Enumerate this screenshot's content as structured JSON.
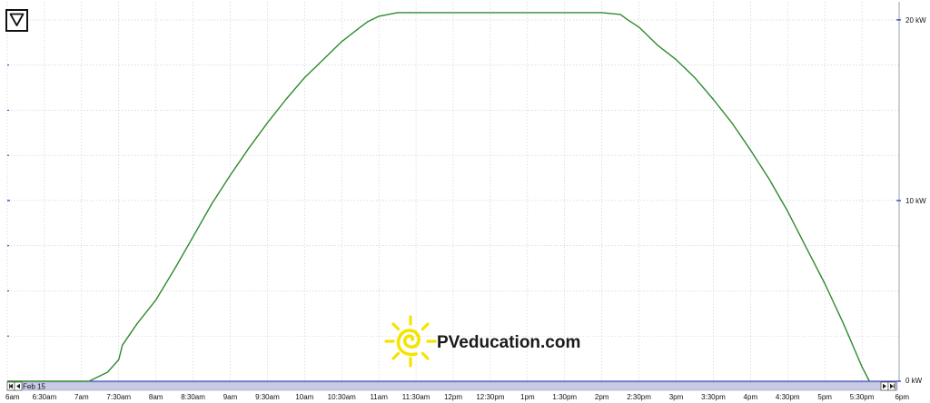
{
  "colors": {
    "line": "#2e8b2e",
    "grid": "#c8ccd4",
    "ytick": "#1c2fb5",
    "scrollbar": "#c9cbe6",
    "logo_sun": "#f5e400"
  },
  "icons": {
    "menu": "triangle-down-icon",
    "nav_first": "first-icon",
    "nav_prev": "prev-icon",
    "nav_next": "next-icon",
    "nav_last": "last-icon"
  },
  "date_label": "Feb 15",
  "brand": "PVeducation.com",
  "chart_data": {
    "type": "line",
    "title": "",
    "xlabel": "",
    "ylabel": "",
    "x_tick_labels": [
      "6am",
      "6:30am",
      "7am",
      "7:30am",
      "8am",
      "8:30am",
      "9am",
      "9:30am",
      "10am",
      "10:30am",
      "11am",
      "11:30am",
      "12pm",
      "12:30pm",
      "1pm",
      "1:30pm",
      "2pm",
      "2:30pm",
      "3pm",
      "3:30pm",
      "4pm",
      "4:30pm",
      "5pm",
      "5:30pm",
      "6pm"
    ],
    "x_range_hours": [
      6,
      18
    ],
    "y_tick_labels": [
      "0 kW",
      "10 kW",
      "20 kW"
    ],
    "y_tick_values": [
      0,
      10,
      20
    ],
    "ylim": [
      0,
      21
    ],
    "grid": true,
    "series": [
      {
        "x": [
          7.1,
          7.35,
          7.5,
          7.55,
          7.75,
          8.0,
          8.25,
          8.5,
          8.75,
          9.0,
          9.25,
          9.5,
          9.75,
          10.0,
          10.25,
          10.5,
          10.75,
          10.85,
          11.0,
          11.25,
          11.5,
          12.0,
          12.5,
          13.0,
          13.5,
          14.0,
          14.25,
          14.35,
          14.5,
          14.75,
          15.0,
          15.25,
          15.5,
          15.75,
          16.0,
          16.25,
          16.5,
          16.75,
          17.0,
          17.25,
          17.5,
          17.6
        ],
        "y": [
          0.0,
          0.5,
          1.2,
          2.0,
          3.2,
          4.5,
          6.2,
          8.0,
          9.8,
          11.4,
          12.9,
          14.3,
          15.6,
          16.8,
          17.8,
          18.8,
          19.6,
          19.9,
          20.2,
          20.4,
          20.4,
          20.4,
          20.4,
          20.4,
          20.4,
          20.4,
          20.3,
          20.0,
          19.6,
          18.6,
          17.8,
          16.8,
          15.6,
          14.3,
          12.8,
          11.2,
          9.4,
          7.4,
          5.4,
          3.2,
          0.8,
          0.0
        ]
      }
    ]
  }
}
